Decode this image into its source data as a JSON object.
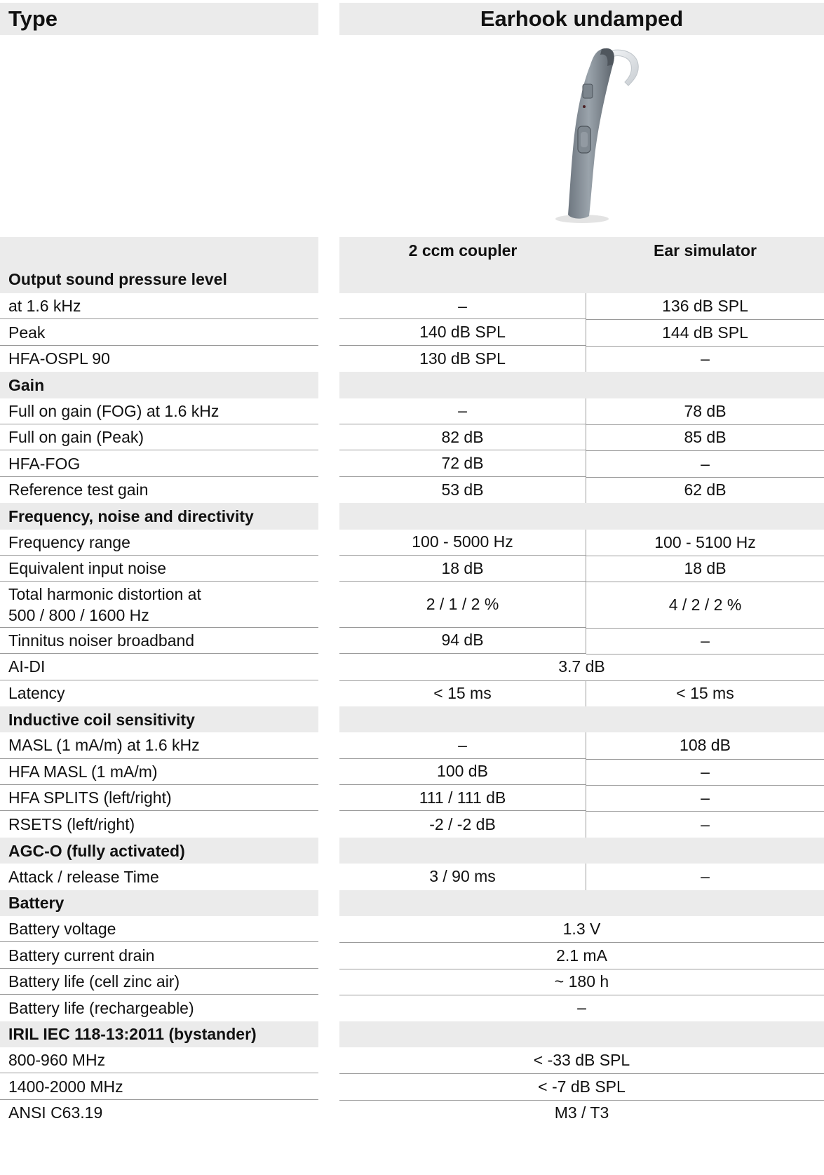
{
  "header": {
    "left_title": "Type",
    "right_title": "Earhook undamped"
  },
  "columns": {
    "section_title": "Output sound pressure level",
    "col1": "2 ccm coupler",
    "col2": "Ear simulator"
  },
  "rows": [
    {
      "kind": "data",
      "label": "at 1.6 kHz",
      "v1": "–",
      "v2": "136 dB SPL"
    },
    {
      "kind": "data",
      "label": "Peak",
      "v1": "140 dB SPL",
      "v2": "144 dB SPL"
    },
    {
      "kind": "data",
      "label": "HFA-OSPL 90",
      "v1": "130 dB SPL",
      "v2": "–",
      "noline": true
    },
    {
      "kind": "sec",
      "label": "Gain"
    },
    {
      "kind": "data",
      "label": "Full on gain (FOG) at 1.6 kHz",
      "v1": "–",
      "v2": "78 dB"
    },
    {
      "kind": "data",
      "label": "Full on gain (Peak)",
      "v1": "82 dB",
      "v2": "85 dB"
    },
    {
      "kind": "data",
      "label": "HFA-FOG",
      "v1": "72 dB",
      "v2": "–"
    },
    {
      "kind": "data",
      "label": "Reference test gain",
      "v1": "53 dB",
      "v2": "62 dB",
      "noline": true
    },
    {
      "kind": "sec",
      "label": "Frequency, noise and directivity"
    },
    {
      "kind": "data",
      "label": "Frequency range",
      "v1": "100 - 5000 Hz",
      "v2": "100 - 5100 Hz"
    },
    {
      "kind": "data",
      "label": "Equivalent input noise",
      "v1": "18 dB",
      "v2": "18 dB"
    },
    {
      "kind": "data",
      "label": "Total harmonic distortion at 500 / 800 / 1600 Hz",
      "label_lines": [
        "Total harmonic distortion at",
        "500 / 800 / 1600 Hz"
      ],
      "v1": "2 / 1 / 2 %",
      "v2": "4 / 2 / 2 %",
      "tall": true
    },
    {
      "kind": "data",
      "label": "Tinnitus noiser broadband",
      "v1": "94 dB",
      "v2": "–"
    },
    {
      "kind": "span",
      "label": "AI-DI",
      "v": "3.7 dB"
    },
    {
      "kind": "data",
      "label": "Latency",
      "v1": "< 15 ms",
      "v2": "< 15 ms",
      "noline": true
    },
    {
      "kind": "sec",
      "label": "Inductive coil sensitivity"
    },
    {
      "kind": "data",
      "label": "MASL (1 mA/m) at 1.6 kHz",
      "v1": "–",
      "v2": "108 dB"
    },
    {
      "kind": "data",
      "label": "HFA MASL (1 mA/m)",
      "v1": "100 dB",
      "v2": "–"
    },
    {
      "kind": "data",
      "label": "HFA SPLITS (left/right)",
      "v1": "111 / 111 dB",
      "v2": "–"
    },
    {
      "kind": "data",
      "label": "RSETS (left/right)",
      "v1": "-2 / -2 dB",
      "v2": "–",
      "noline": true
    },
    {
      "kind": "sec",
      "label": "AGC-O (fully activated)"
    },
    {
      "kind": "data",
      "label": "Attack / release Time",
      "v1": "3 / 90 ms",
      "v2": "–",
      "noline": true
    },
    {
      "kind": "sec",
      "label": "Battery"
    },
    {
      "kind": "span",
      "label": "Battery voltage",
      "v": "1.3 V"
    },
    {
      "kind": "span",
      "label": "Battery current drain",
      "v": "2.1 mA"
    },
    {
      "kind": "span",
      "label": "Battery life (cell zinc air)",
      "v": "~ 180 h"
    },
    {
      "kind": "span",
      "label": "Battery life (rechargeable)",
      "v": "–",
      "noline": true
    },
    {
      "kind": "sec",
      "label": "IRIL IEC 118-13:2011 (bystander)"
    },
    {
      "kind": "span",
      "label": "800-960 MHz",
      "v": "< -33 dB SPL"
    },
    {
      "kind": "span",
      "label": "1400-2000 MHz",
      "v": "< -7 dB SPL"
    },
    {
      "kind": "span",
      "label": "ANSI C63.19",
      "v": "M3 / T3",
      "noline": true
    }
  ]
}
